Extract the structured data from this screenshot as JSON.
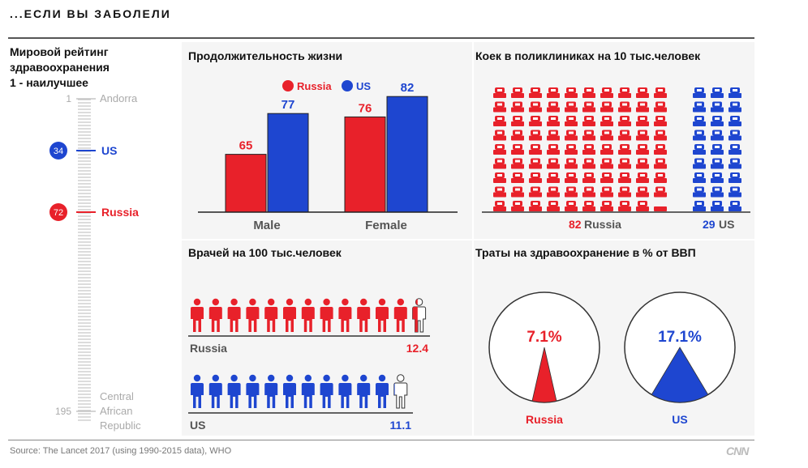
{
  "header": "...ЕСЛИ ВЫ ЗАБОЛЕЛИ",
  "source": "Source: The Lancet 2017 (using 1990-2015 data), WHO",
  "brand": "CNN",
  "colors": {
    "russia": "#e8212a",
    "us": "#1e46d0"
  },
  "ranking": {
    "title_lines": [
      "Мировой рейтинг",
      "здравоохранения",
      "1 - наилучшее"
    ],
    "top": {
      "rank": "1",
      "name": "Andorra"
    },
    "bottom": {
      "rank": "195",
      "name_lines": [
        "Central",
        "African",
        "Republic"
      ]
    },
    "items": [
      {
        "rank": 34,
        "name": "US",
        "color": "#1e46d0"
      },
      {
        "rank": 72,
        "name": "Russia",
        "color": "#e8212a"
      }
    ]
  },
  "life": {
    "title": "Продолжительность жизни",
    "legend": [
      "Russia",
      "US"
    ]
  },
  "beds": {
    "title": "Коек в поликлиниках на 10 тыс.человек",
    "russia_value": "82",
    "russia_label": "Russia",
    "us_value": "29",
    "us_label": "US",
    "russia_count": 82,
    "us_count": 29
  },
  "doctors": {
    "title": "Врачей на 100 тыс.человек",
    "russia_label": "Russia",
    "russia_value": "12.4",
    "us_label": "US",
    "us_value": "11.1",
    "russia_count": 12.4,
    "us_count": 11.1
  },
  "spending": {
    "title": "Траты на здравоохранение в % от ВВП",
    "russia_label": "Russia",
    "russia_value": "7.1%",
    "us_label": "US",
    "us_value": "17.1%",
    "russia_pct": 7.1,
    "us_pct": 17.1
  },
  "chart_data": {
    "type": "bar",
    "title": "Продолжительность жизни",
    "categories": [
      "Male",
      "Female"
    ],
    "series": [
      {
        "name": "Russia",
        "values": [
          65,
          76
        ]
      },
      {
        "name": "US",
        "values": [
          77,
          82
        ]
      }
    ]
  }
}
